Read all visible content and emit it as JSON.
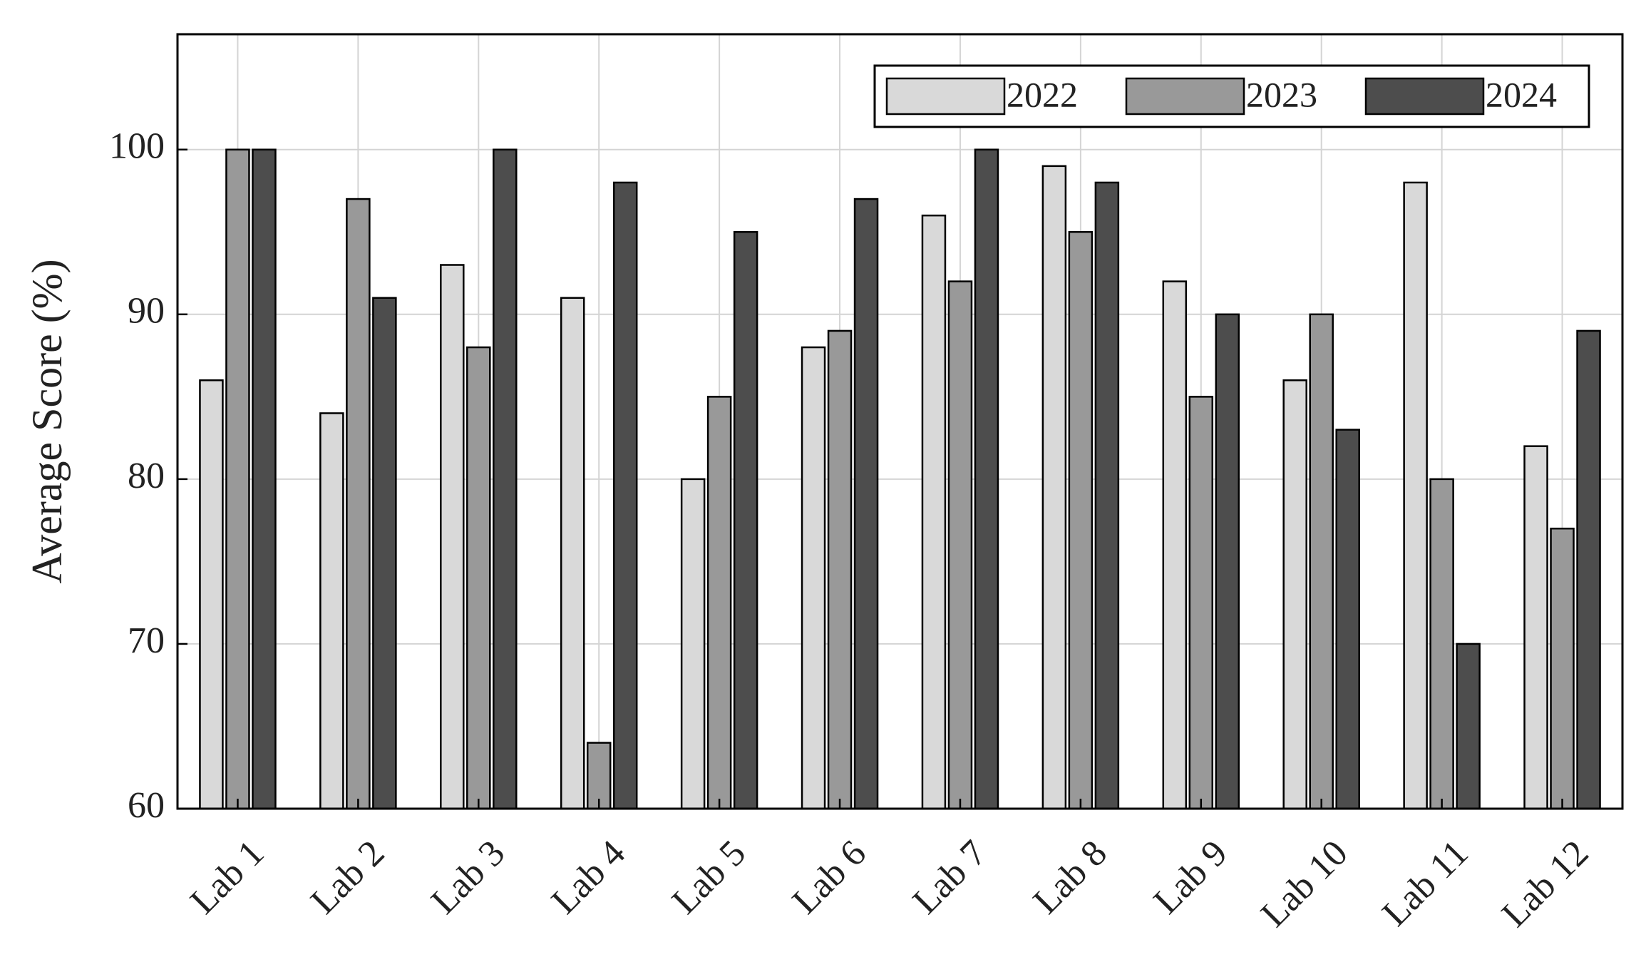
{
  "chart_data": {
    "type": "bar",
    "y_label": "Average Score (%)",
    "categories": [
      "Lab 1",
      "Lab 2",
      "Lab 3",
      "Lab 4",
      "Lab 5",
      "Lab 6",
      "Lab 7",
      "Lab 8",
      "Lab 9",
      "Lab 10",
      "Lab 11",
      "Lab 12"
    ],
    "series": [
      {
        "name": "2022",
        "color": "#d9d9d9",
        "values": [
          86,
          84,
          93,
          91,
          80,
          88,
          96,
          99,
          92,
          86,
          98,
          82
        ]
      },
      {
        "name": "2023",
        "color": "#999999",
        "values": [
          100,
          97,
          88,
          64,
          85,
          89,
          92,
          95,
          85,
          90,
          80,
          77
        ]
      },
      {
        "name": "2024",
        "color": "#4d4d4d",
        "values": [
          100,
          91,
          100,
          98,
          95,
          97,
          100,
          98,
          90,
          83,
          70,
          89
        ]
      }
    ],
    "ylim": [
      60,
      107
    ],
    "yticks": [
      60,
      70,
      80,
      90,
      100
    ],
    "grid": true,
    "legend": "upper right"
  }
}
